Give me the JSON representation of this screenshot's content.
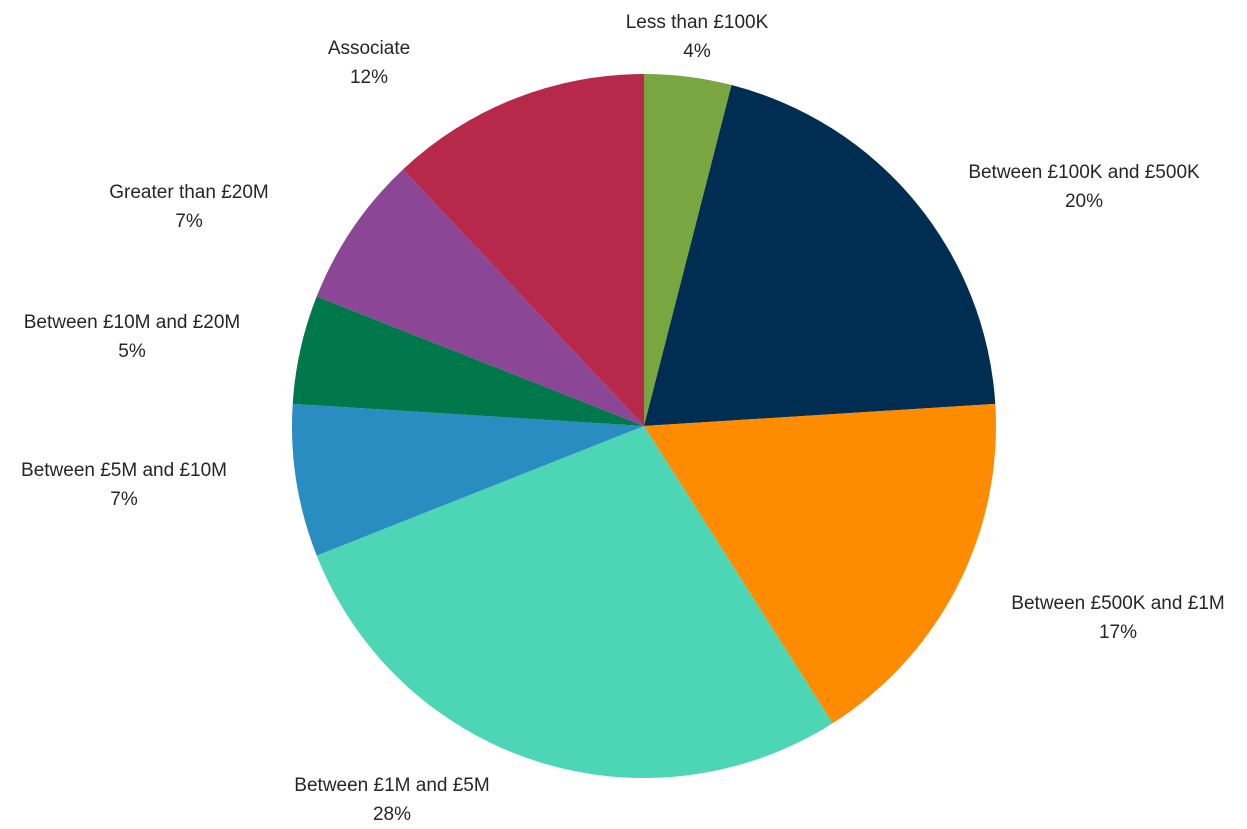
{
  "chart_data": {
    "type": "pie",
    "slices": [
      {
        "label": "Less than £100K",
        "value": 4,
        "value_label": "4%",
        "color": "#7aa642"
      },
      {
        "label": "Between £100K and £500K",
        "value": 20,
        "value_label": "20%",
        "color": "#002d52"
      },
      {
        "label": "Between £500K and £1M",
        "value": 17,
        "value_label": "17%",
        "color": "#ff8b00"
      },
      {
        "label": "Between £1M and £5M",
        "value": 28,
        "value_label": "28%",
        "color": "#4cd6b6"
      },
      {
        "label": "Between £5M and £10M",
        "value": 7,
        "value_label": "7%",
        "color": "#2a8dc2"
      },
      {
        "label": "Between £10M and £20M",
        "value": 5,
        "value_label": "5%",
        "color": "#00784b"
      },
      {
        "label": "Greater than £20M",
        "value": 7,
        "value_label": "7%",
        "color": "#8b4796"
      },
      {
        "label": "Associate",
        "value": 12,
        "value_label": "12%",
        "color": "#b7294a"
      }
    ],
    "start": "12 o'clock",
    "direction": "clockwise",
    "legend": "none",
    "labels": "outside"
  }
}
